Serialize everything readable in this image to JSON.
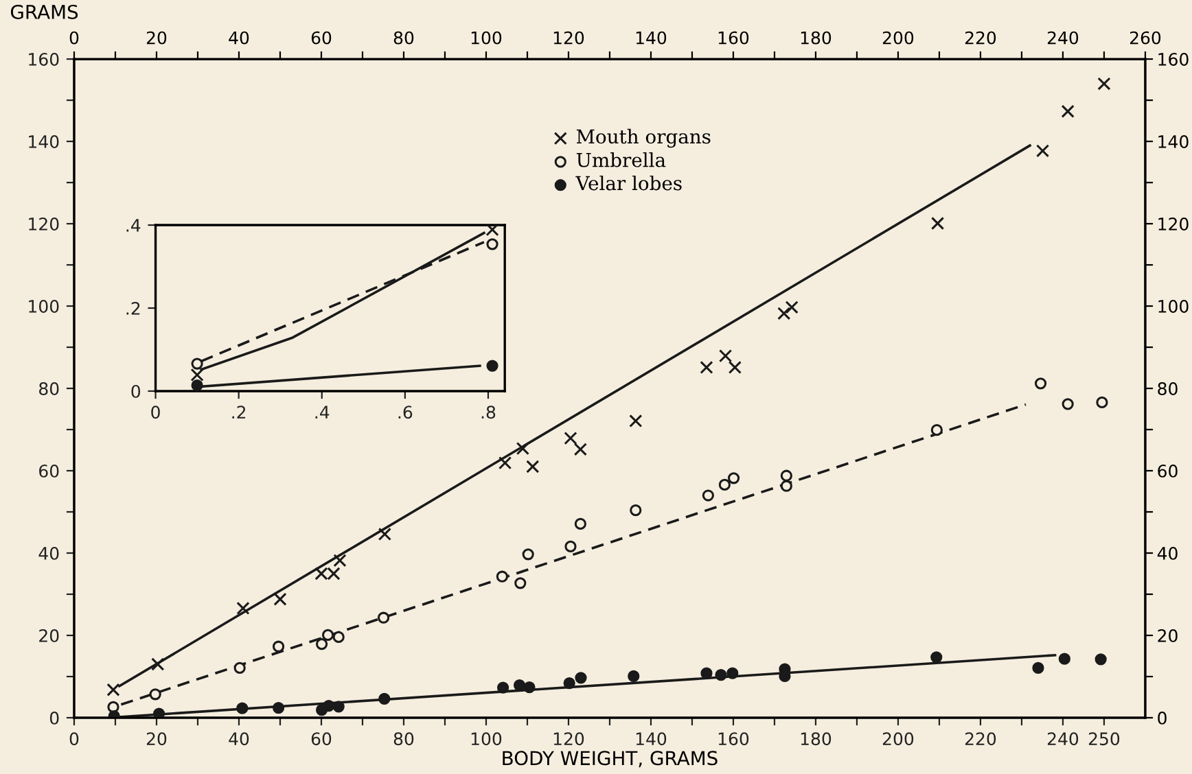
{
  "chart_data": [
    {
      "type": "scatter",
      "xlabel": "BODY WEIGHT, GRAMS",
      "ylabel": "GRAMS",
      "xlim": [
        0,
        260
      ],
      "ylim": [
        0,
        160
      ],
      "xticks": [
        0,
        {
          "value": 10,
          "label": null
        },
        20,
        {
          "value": 30,
          "label": null
        },
        40,
        {
          "value": 50,
          "label": null
        },
        60,
        {
          "value": 70,
          "label": null
        },
        80,
        {
          "value": 90,
          "label": null
        },
        100,
        {
          "value": 110,
          "label": null
        },
        120,
        {
          "value": 130,
          "label": null
        },
        140,
        {
          "value": 150,
          "label": null
        },
        160,
        {
          "value": 170,
          "label": null
        },
        180,
        {
          "value": 190,
          "label": null
        },
        200,
        {
          "value": 210,
          "label": null
        },
        220,
        {
          "value": 230,
          "label": null
        },
        240,
        250
      ],
      "x2lim": [
        0,
        260
      ],
      "x2ticks": [
        0,
        {
          "value": 10,
          "label": null
        },
        20,
        {
          "value": 30,
          "label": null
        },
        40,
        {
          "value": 50,
          "label": null
        },
        60,
        {
          "value": 70,
          "label": null
        },
        80,
        {
          "value": 90,
          "label": null
        },
        100,
        {
          "value": 110,
          "label": null
        },
        120,
        {
          "value": 130,
          "label": null
        },
        140,
        {
          "value": 150,
          "label": null
        },
        160,
        {
          "value": 170,
          "label": null
        },
        180,
        {
          "value": 190,
          "label": null
        },
        200,
        {
          "value": 210,
          "label": null
        },
        220,
        {
          "value": 230,
          "label": null
        },
        240,
        {
          "value": 250,
          "label": null
        },
        260
      ],
      "yticks": [
        0,
        {
          "value": 10,
          "label": null
        },
        20,
        {
          "value": 30,
          "label": null
        },
        40,
        {
          "value": 50,
          "label": null
        },
        60,
        {
          "value": 70,
          "label": null
        },
        80,
        {
          "value": 90,
          "label": null
        },
        100,
        {
          "value": 110,
          "label": null
        },
        120,
        {
          "value": 130,
          "label": null
        },
        140,
        {
          "value": 150,
          "label": null
        },
        160
      ],
      "y2lim": [
        0,
        160
      ],
      "y2ticks": [
        0,
        {
          "value": 10,
          "label": null
        },
        20,
        {
          "value": 30,
          "label": null
        },
        40,
        {
          "value": 50,
          "label": null
        },
        60,
        {
          "value": 70,
          "label": null
        },
        80,
        {
          "value": 90,
          "label": null
        },
        100,
        {
          "value": 110,
          "label": null
        },
        120,
        {
          "value": 130,
          "label": null
        },
        140,
        {
          "value": 150,
          "label": null
        },
        160
      ],
      "grid": false,
      "legend": "top",
      "series": [
        {
          "name": "Mouth organs",
          "type": "scatter",
          "marker": "cross",
          "color": "#1a1a1a",
          "x": [
            9.5,
            20.3,
            41,
            50,
            60,
            63,
            64.5,
            75.4,
            104.6,
            108.9,
            111.3,
            120.5,
            122.9,
            136.3,
            153.5,
            158.1,
            160.4,
            172.3,
            174.2,
            209.6,
            235.1,
            241.2,
            250
          ],
          "values": [
            6.8,
            13,
            26.6,
            28.8,
            35,
            35,
            38.2,
            44.6,
            61.9,
            65.4,
            61,
            67.9,
            65.2,
            72.1,
            85.1,
            87.9,
            85.1,
            98.2,
            99.7,
            120.1,
            137.7,
            147.3,
            154
          ]
        },
        {
          "name": "Umbrella",
          "type": "scatter",
          "marker": "circle",
          "color": "#f5eedf",
          "x": [
            9.5,
            19.7,
            40.2,
            49.6,
            60.1,
            61.6,
            64.2,
            75.1,
            103.9,
            108.3,
            110.2,
            120.5,
            122.9,
            136.3,
            153.9,
            157.9,
            160.1,
            172.9,
            172.9,
            209.4,
            234.6,
            241.2,
            249.5
          ],
          "values": [
            2.6,
            5.7,
            12.1,
            17.3,
            17.9,
            20.1,
            19.6,
            24.3,
            34.3,
            32.7,
            39.7,
            41.6,
            47.1,
            50.4,
            54,
            56.6,
            58.2,
            58.8,
            56.3,
            69.9,
            81.2,
            76.2,
            76.6
          ]
        },
        {
          "name": "Velar lobes",
          "type": "scatter",
          "marker": "circle",
          "color": "#1a1a1a",
          "x": [
            9.7,
            20.6,
            40.8,
            49.6,
            60.1,
            61.8,
            64.2,
            75.3,
            104.1,
            108.1,
            110.5,
            120.2,
            123,
            135.8,
            153.5,
            157,
            159.8,
            172.5,
            172.5,
            209.3,
            234,
            240.4,
            249.2
          ],
          "values": [
            0.4,
            1,
            2.3,
            2.4,
            1.9,
            2.9,
            2.7,
            4.6,
            7.3,
            7.9,
            7.4,
            8.4,
            9.7,
            10.1,
            10.8,
            10.4,
            10.8,
            11.8,
            10.1,
            14.7,
            12.1,
            14.3,
            14.2
          ]
        },
        {
          "type": "line",
          "line_style": "solid",
          "color": "#1a1a1a",
          "x": [
            11,
            232
          ],
          "values": [
            7.7,
            139
          ]
        },
        {
          "type": "line",
          "line_style": "dashed",
          "color": "#1a1a1a",
          "x": [
            11.4,
            231
          ],
          "values": [
            3.2,
            76.1
          ]
        },
        {
          "type": "line",
          "line_style": "solid",
          "color": "#1a1a1a",
          "x": [
            11.4,
            238.1
          ],
          "values": [
            0.2,
            15.2
          ]
        }
      ]
    },
    {
      "type": "scatter",
      "xlim": [
        0,
        0.84
      ],
      "ylim": [
        0,
        0.4
      ],
      "xticks": [
        {
          "value": 0,
          "label": "0"
        },
        {
          "value": 0.2,
          "label": ".2"
        },
        {
          "value": 0.4,
          "label": ".4"
        },
        {
          "value": 0.6,
          "label": ".6"
        },
        {
          "value": 0.8,
          "label": ".8"
        }
      ],
      "yticks": [
        {
          "value": 0,
          "label": "0"
        },
        {
          "value": 0.2,
          "label": ".2"
        },
        {
          "value": 0.4,
          "label": ".4"
        }
      ],
      "grid": false,
      "series": [
        {
          "type": "scatter",
          "marker": "cross",
          "color": "#1a1a1a",
          "x": [
            0.1,
            0.81
          ],
          "values": [
            0.039,
            0.389
          ]
        },
        {
          "type": "scatter",
          "marker": "circle",
          "color": "#f5eedf",
          "x": [
            0.1,
            0.81
          ],
          "values": [
            0.066,
            0.354
          ]
        },
        {
          "type": "scatter",
          "marker": "circle",
          "color": "#1a1a1a",
          "x": [
            0.1,
            0.81
          ],
          "values": [
            0.014,
            0.061
          ]
        },
        {
          "type": "line",
          "line_style": "solid",
          "color": "#1a1a1a",
          "x": [
            0.11,
            0.33,
            0.79
          ],
          "values": [
            0.052,
            0.129,
            0.381
          ]
        },
        {
          "type": "line",
          "line_style": "dashed",
          "color": "#1a1a1a",
          "x": [
            0.11,
            0.79
          ],
          "values": [
            0.072,
            0.359
          ]
        },
        {
          "type": "line",
          "line_style": "solid",
          "color": "#1a1a1a",
          "x": [
            0.11,
            0.78
          ],
          "values": [
            0.011,
            0.061
          ]
        }
      ]
    }
  ]
}
